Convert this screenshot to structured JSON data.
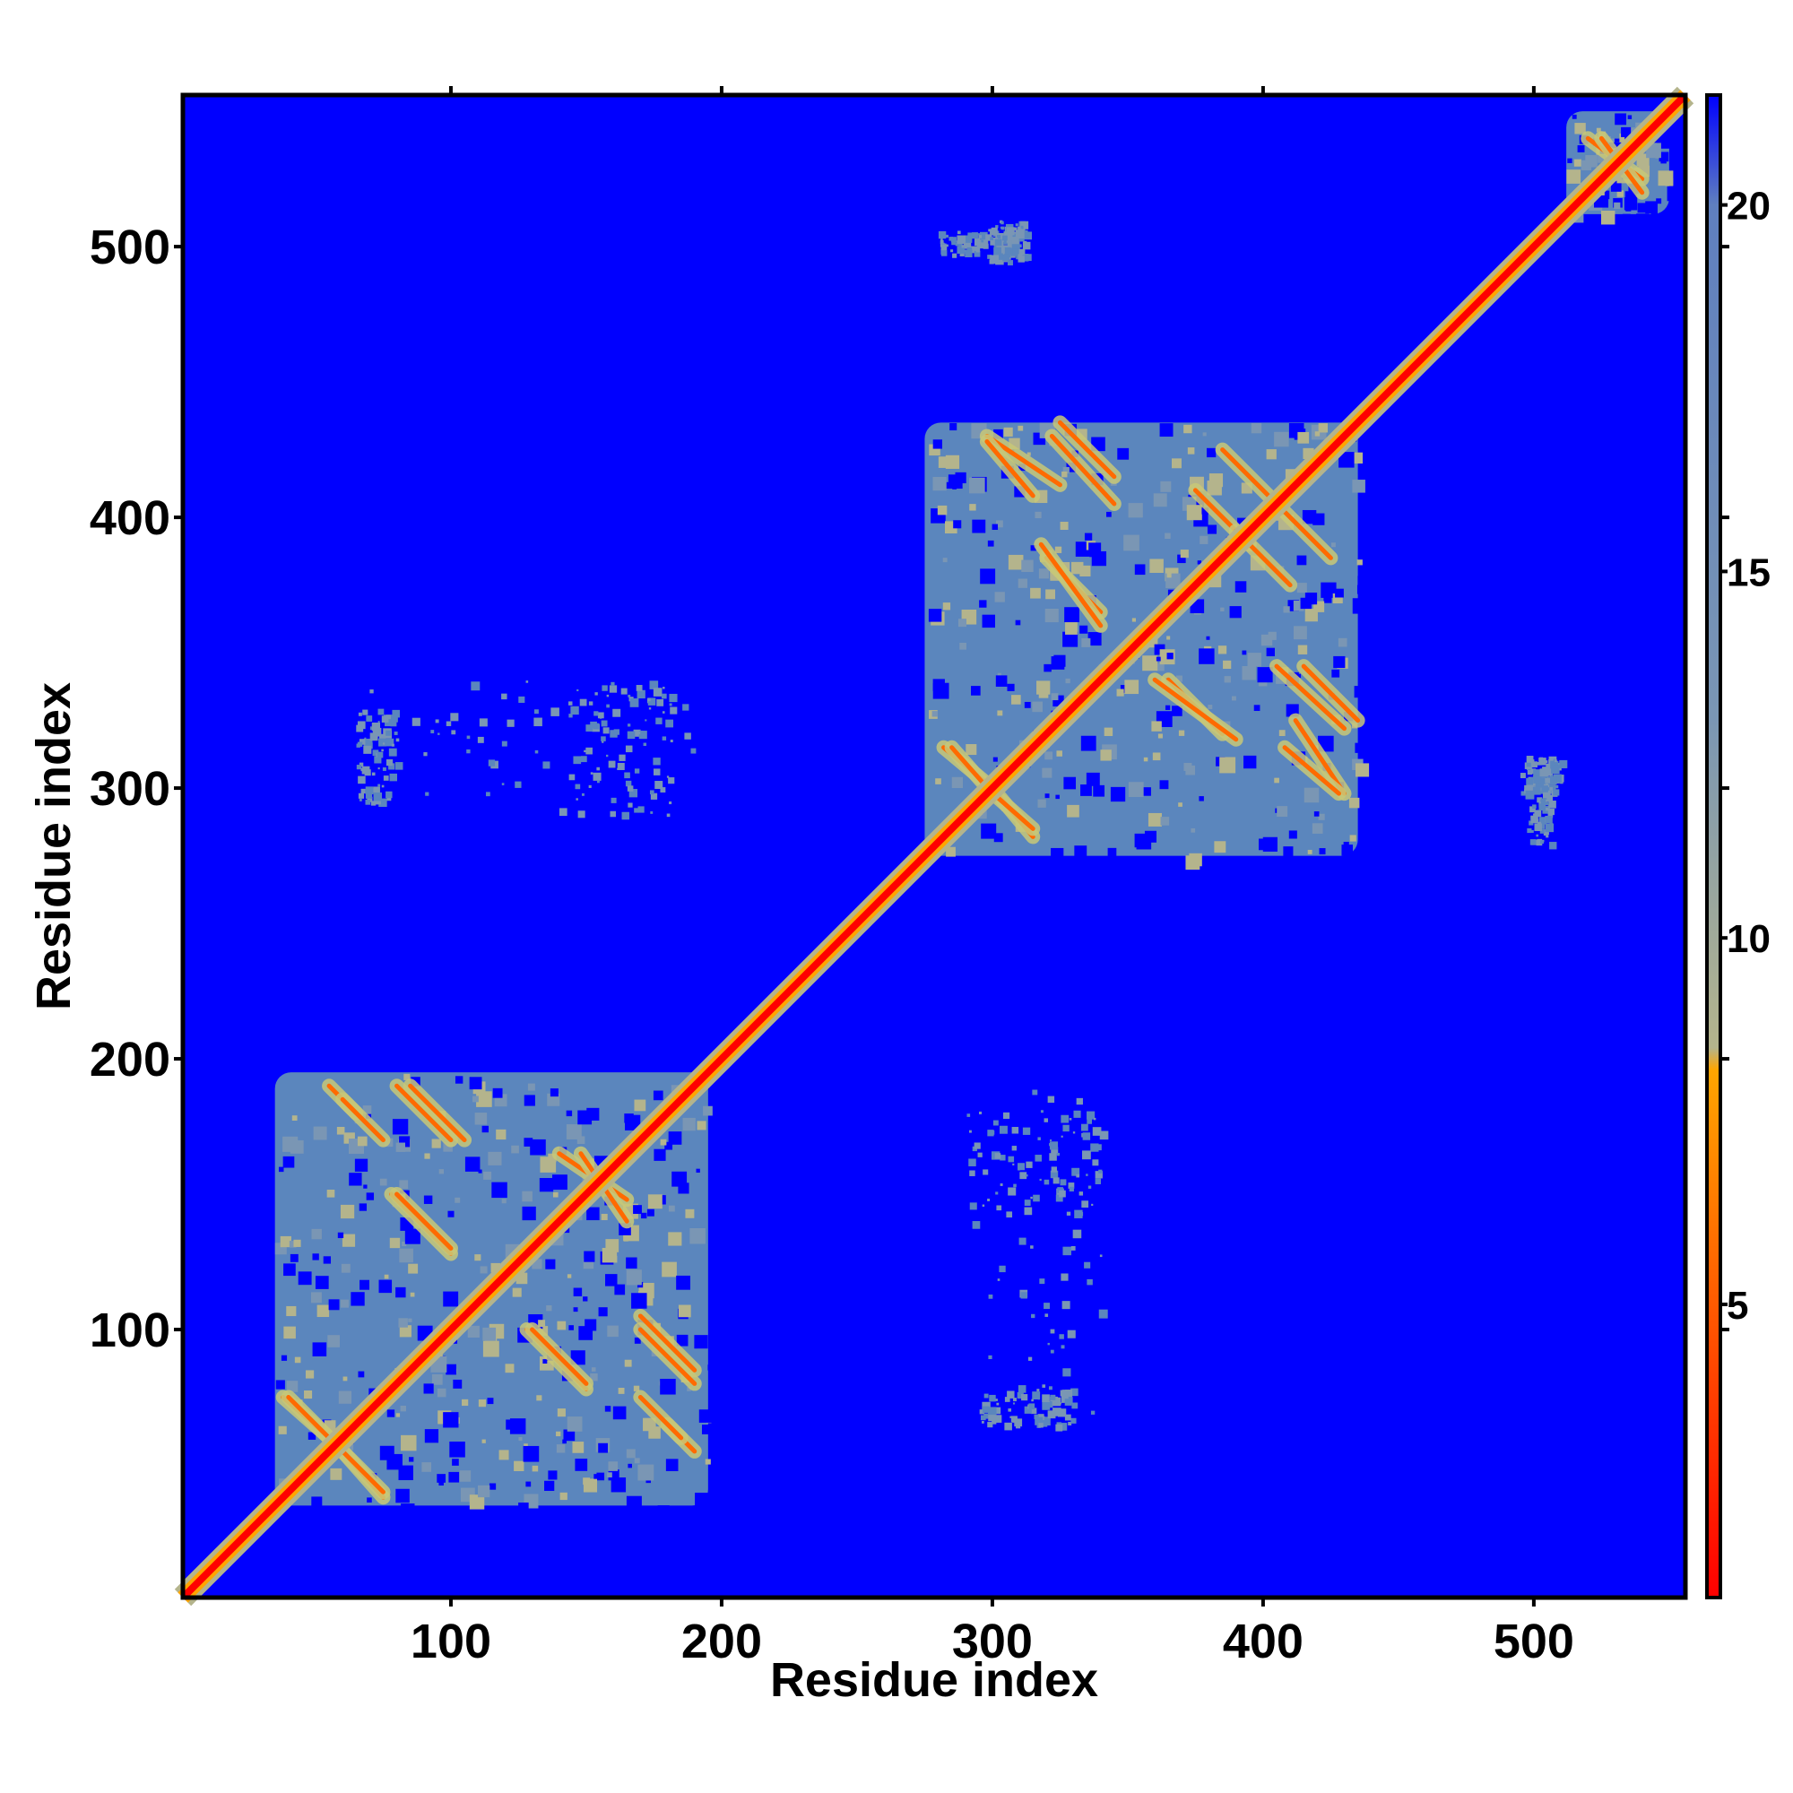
{
  "chart_data": {
    "type": "heatmap",
    "title": "",
    "xlabel": "Residue index",
    "ylabel": "Residue index",
    "xlim": [
      1,
      556
    ],
    "ylim": [
      1,
      556
    ],
    "x_ticks": [
      100,
      200,
      300,
      400,
      500
    ],
    "y_ticks": [
      100,
      200,
      300,
      400,
      500
    ],
    "colorbar": {
      "range": [
        1,
        21.5
      ],
      "ticks": [
        5,
        10,
        15,
        20
      ],
      "stops": [
        {
          "value": 1,
          "color": "#ff0000"
        },
        {
          "value": 5,
          "color": "#ff5a00"
        },
        {
          "value": 8.2,
          "color": "#ffa500"
        },
        {
          "value": 8.5,
          "color": "#b4b48c"
        },
        {
          "value": 13,
          "color": "#7a96b4"
        },
        {
          "value": 20,
          "color": "#5f7fbf"
        },
        {
          "value": 21.5,
          "color": "#0000ff"
        }
      ]
    },
    "background_color": "#0000ff",
    "domain_color": "#5b86bd",
    "diagonal_color": "#ff0000",
    "domains": [
      {
        "start": 35,
        "end": 195
      },
      {
        "start": 275,
        "end": 435
      },
      {
        "start": 512,
        "end": 550
      }
    ],
    "contact_lines": [
      {
        "i": [
          80,
          100
        ],
        "j": [
          190,
          170
        ]
      },
      {
        "i": [
          55,
          65
        ],
        "j": [
          190,
          180
        ]
      },
      {
        "i": [
          78,
          100
        ],
        "j": [
          150,
          128
        ]
      },
      {
        "i": [
          140,
          165
        ],
        "j": [
          165,
          148
        ]
      },
      {
        "i": [
          130,
          150
        ],
        "j": [
          100,
          80
        ]
      },
      {
        "i": [
          170,
          190
        ],
        "j": [
          105,
          85
        ]
      },
      {
        "i": [
          170,
          185
        ],
        "j": [
          75,
          60
        ]
      },
      {
        "i": [
          38,
          55
        ],
        "j": [
          75,
          60
        ]
      },
      {
        "i": [
          60,
          75
        ],
        "j": [
          55,
          40
        ]
      },
      {
        "i": [
          298,
          325
        ],
        "j": [
          430,
          412
        ]
      },
      {
        "i": [
          325,
          345
        ],
        "j": [
          435,
          415
        ]
      },
      {
        "i": [
          320,
          340
        ],
        "j": [
          385,
          365
        ]
      },
      {
        "i": [
          375,
          395
        ],
        "j": [
          410,
          390
        ]
      },
      {
        "i": [
          385,
          405
        ],
        "j": [
          425,
          405
        ]
      },
      {
        "i": [
          360,
          390
        ],
        "j": [
          340,
          318
        ]
      },
      {
        "i": [
          405,
          430
        ],
        "j": [
          345,
          322
        ]
      },
      {
        "i": [
          408,
          428
        ],
        "j": [
          315,
          298
        ]
      },
      {
        "i": [
          282,
          300
        ],
        "j": [
          315,
          300
        ]
      },
      {
        "i": [
          298,
          315
        ],
        "j": [
          300,
          285
        ]
      },
      {
        "i": [
          520,
          540
        ],
        "j": [
          540,
          525
        ]
      }
    ],
    "off_domain_speckles": [
      {
        "x": [
          70,
          190
        ],
        "y": [
          295,
          340
        ]
      },
      {
        "x": [
          290,
          340
        ],
        "y": [
          140,
          180
        ]
      },
      {
        "x": [
          295,
          330
        ],
        "y": [
          65,
          80
        ]
      },
      {
        "x": [
          280,
          305
        ],
        "y": [
          497,
          506
        ]
      },
      {
        "x": [
          495,
          510
        ],
        "y": [
          298,
          312
        ]
      }
    ]
  }
}
